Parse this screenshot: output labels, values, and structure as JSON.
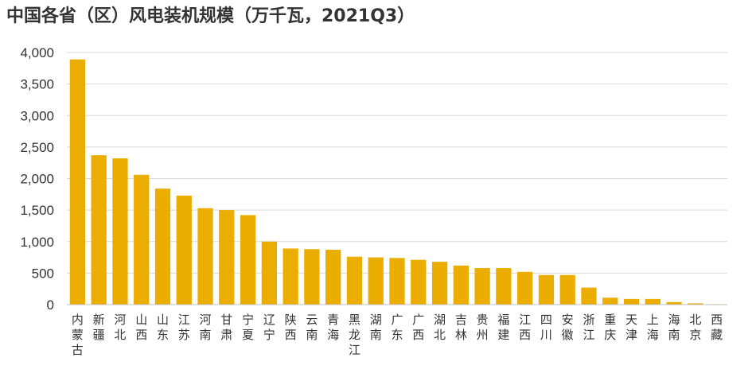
{
  "title": "中国各省（区）风电装机规模（万千瓦，2021Q3）",
  "colors": {
    "bar": "#EBAD00",
    "grid": "#D9D9D9",
    "axis": "#BFBFBF",
    "text": "#333333"
  },
  "chart_data": {
    "type": "bar",
    "title": "中国各省（区）风电装机规模（万千瓦，2021Q3）",
    "xlabel": "",
    "ylabel": "",
    "ylim": [
      0,
      4000
    ],
    "yticks": [
      0,
      500,
      1000,
      1500,
      2000,
      2500,
      3000,
      3500,
      4000
    ],
    "ytick_labels": [
      "0",
      "500",
      "1,000",
      "1,500",
      "2,000",
      "2,500",
      "3,000",
      "3,500",
      "4,000"
    ],
    "grid": true,
    "legend": "none",
    "categories": [
      "内蒙古",
      "新疆",
      "河北",
      "山西",
      "山东",
      "江苏",
      "河南",
      "甘肃",
      "宁夏",
      "辽宁",
      "陕西",
      "云南",
      "青海",
      "黑龙江",
      "湖南",
      "广东",
      "广西",
      "湖北",
      "吉林",
      "贵州",
      "福建",
      "江西",
      "四川",
      "安徽",
      "浙江",
      "重庆",
      "天津",
      "上海",
      "海南",
      "北京",
      "西藏"
    ],
    "values": [
      3890,
      2370,
      2320,
      2060,
      1840,
      1730,
      1530,
      1500,
      1420,
      1000,
      890,
      880,
      870,
      760,
      750,
      740,
      710,
      680,
      620,
      580,
      580,
      520,
      470,
      470,
      270,
      110,
      90,
      90,
      40,
      20,
      1
    ]
  }
}
